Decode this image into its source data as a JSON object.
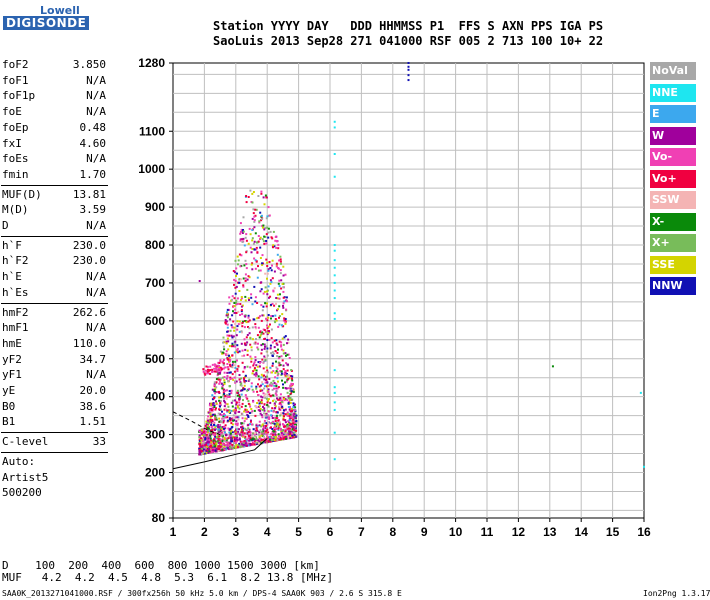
{
  "logo": {
    "top": "Lowell",
    "bottom": "DIGISONDE"
  },
  "header": {
    "line1": "Station YYYY DAY   DDD HHMMSS P1  FFS S AXN PPS IGA PS",
    "line2": "SaoLuis 2013 Sep28 271 041000 RSF 005 2 713 100 10+ 22"
  },
  "params_group1": [
    {
      "label": "foF2",
      "value": "3.850"
    },
    {
      "label": "foF1",
      "value": "N/A"
    },
    {
      "label": "foF1p",
      "value": "N/A"
    },
    {
      "label": "foE",
      "value": "N/A"
    },
    {
      "label": "foEp",
      "value": "0.48"
    },
    {
      "label": "fxI",
      "value": "4.60"
    },
    {
      "label": "foEs",
      "value": "N/A"
    },
    {
      "label": "fmin",
      "value": "1.70"
    }
  ],
  "params_group2": [
    {
      "label": "MUF(D)",
      "value": "13.81"
    },
    {
      "label": "M(D)",
      "value": "3.59"
    },
    {
      "label": "D",
      "value": "N/A"
    }
  ],
  "params_group3": [
    {
      "label": "h`F",
      "value": "230.0"
    },
    {
      "label": "h`F2",
      "value": "230.0"
    },
    {
      "label": "h`E",
      "value": "N/A"
    },
    {
      "label": "h`Es",
      "value": "N/A"
    }
  ],
  "params_group4": [
    {
      "label": "hmF2",
      "value": "262.6"
    },
    {
      "label": "hmF1",
      "value": "N/A"
    },
    {
      "label": "hmE",
      "value": "110.0"
    },
    {
      "label": "yF2",
      "value": "34.7"
    },
    {
      "label": "yF1",
      "value": "N/A"
    },
    {
      "label": "yE",
      "value": "20.0"
    },
    {
      "label": "B0",
      "value": "38.6"
    },
    {
      "label": "B1",
      "value": "1.51"
    }
  ],
  "clevel": {
    "label": "C-level",
    "value": "33"
  },
  "auto": [
    "Auto:",
    "Artist5",
    "500200"
  ],
  "legend": [
    {
      "label": "NoVal",
      "color": "#a8a8a8"
    },
    {
      "label": "NNE",
      "color": "#1ee6f0"
    },
    {
      "label": "E",
      "color": "#3ca8ee"
    },
    {
      "label": "W",
      "color": "#a0009c"
    },
    {
      "label": "Vo-",
      "color": "#f040b4"
    },
    {
      "label": "Vo+",
      "color": "#f00040"
    },
    {
      "label": "SSW",
      "color": "#f4b4b4"
    },
    {
      "label": "X-",
      "color": "#0a8a0a"
    },
    {
      "label": "X+",
      "color": "#78bc5a"
    },
    {
      "label": "SSE",
      "color": "#d4d400"
    },
    {
      "label": "NNW",
      "color": "#1010b4"
    }
  ],
  "bottom": {
    "d_row": "D    100  200  400  600  800 1000 1500 3000 [km]",
    "muf_row": "MUF   4.2  4.2  4.5  4.8  5.3  6.1  8.2 13.8 [MHz]"
  },
  "footer": {
    "left": "SAA0K_2013271041000.RSF / 300fx256h 50 kHz 5.0 km / DPS-4 SAA0K 903 / 2.6 S 315.8 E",
    "right": "Ion2Png 1.3.17"
  },
  "chart_data": {
    "type": "scatter",
    "x_ticks": [
      "1",
      "2",
      "3",
      "4",
      "5",
      "6",
      "7",
      "8",
      "9",
      "10",
      "11",
      "12",
      "13",
      "14",
      "15",
      "16"
    ],
    "y_ticks": [
      "80",
      "200",
      "300",
      "400",
      "500",
      "600",
      "700",
      "800",
      "900",
      "1000",
      "1100",
      "1280"
    ],
    "xlim": [
      1,
      16
    ],
    "ylim": [
      80,
      1280
    ],
    "grid": true,
    "legend_placement": "right",
    "series": [
      {
        "name": "NNE",
        "points": [
          [
            6.15,
            1125
          ],
          [
            6.15,
            1110
          ],
          [
            6.15,
            1040
          ],
          [
            6.15,
            980
          ],
          [
            6.15,
            800
          ],
          [
            6.15,
            785
          ],
          [
            6.15,
            760
          ],
          [
            6.15,
            740
          ],
          [
            6.15,
            720
          ],
          [
            6.15,
            700
          ],
          [
            6.15,
            680
          ],
          [
            6.15,
            660
          ],
          [
            6.15,
            620
          ],
          [
            6.15,
            605
          ],
          [
            6.15,
            470
          ],
          [
            6.15,
            425
          ],
          [
            6.15,
            410
          ],
          [
            6.15,
            385
          ],
          [
            6.15,
            365
          ],
          [
            6.15,
            305
          ],
          [
            6.15,
            235
          ],
          [
            15.9,
            410
          ],
          [
            16.0,
            215
          ]
        ]
      },
      {
        "name": "NNW",
        "points": [
          [
            8.5,
            1280
          ],
          [
            8.5,
            1270
          ],
          [
            8.5,
            1262
          ],
          [
            8.5,
            1248
          ],
          [
            8.5,
            1235
          ]
        ]
      },
      {
        "name": "X-",
        "points": [
          [
            13.1,
            480
          ]
        ]
      },
      {
        "name": "W",
        "points": [
          [
            1.85,
            705
          ]
        ]
      }
    ],
    "trace_lines": [
      {
        "style": "solid",
        "points": [
          [
            1.0,
            210
          ],
          [
            2.0,
            228
          ],
          [
            3.0,
            248
          ],
          [
            3.6,
            260
          ],
          [
            4.0,
            290
          ]
        ]
      },
      {
        "style": "dashed",
        "points": [
          [
            1.0,
            360
          ],
          [
            1.6,
            335
          ],
          [
            2.1,
            312
          ],
          [
            2.5,
            300
          ]
        ]
      }
    ]
  }
}
